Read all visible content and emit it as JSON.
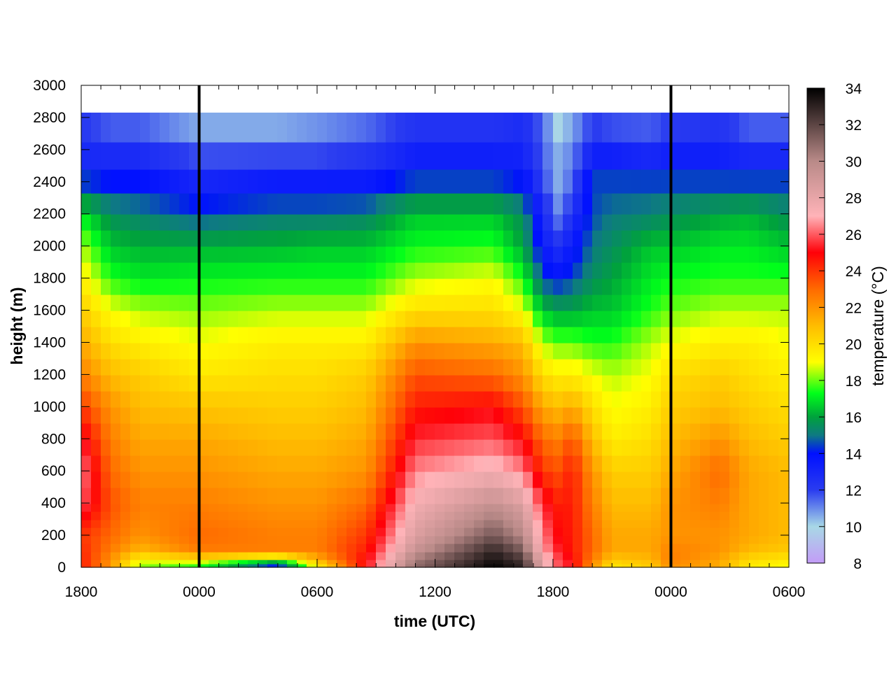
{
  "chart_data": {
    "type": "heatmap",
    "title": "",
    "xlabel": "time (UTC)",
    "ylabel": "height (m)",
    "colorbar_label": "temperature (°C)",
    "x_ticks": [
      "1800",
      "0000",
      "0600",
      "1200",
      "1800",
      "0000",
      "0600"
    ],
    "x_tick_hours": [
      0,
      6,
      12,
      18,
      24,
      30,
      36
    ],
    "xlim_hours": [
      0,
      36
    ],
    "y_ticks": [
      0,
      200,
      400,
      600,
      800,
      1000,
      1200,
      1400,
      1600,
      1800,
      2000,
      2200,
      2400,
      2600,
      2800,
      3000
    ],
    "ylim": [
      0,
      3000
    ],
    "colorbar_ticks": [
      8,
      10,
      12,
      14,
      16,
      18,
      20,
      22,
      24,
      26,
      28,
      30,
      32,
      34
    ],
    "colorbar_range": [
      8,
      34
    ],
    "data_top_height": 2830,
    "day_boundaries_hours": [
      6,
      30
    ],
    "grid": false,
    "colorscale": [
      {
        "value": 8,
        "color": "#c39cf7"
      },
      {
        "value": 10,
        "color": "#a8d8e6"
      },
      {
        "value": 12,
        "color": "#2a3cf0"
      },
      {
        "value": 14,
        "color": "#0010ff"
      },
      {
        "value": 15,
        "color": "#0e7a82"
      },
      {
        "value": 16,
        "color": "#00a23c"
      },
      {
        "value": 17.3,
        "color": "#00ff1a"
      },
      {
        "value": 19,
        "color": "#ffff00"
      },
      {
        "value": 21,
        "color": "#ffbc00"
      },
      {
        "value": 23,
        "color": "#ff6a00"
      },
      {
        "value": 25,
        "color": "#ff0008"
      },
      {
        "value": 27,
        "color": "#ffb3b8"
      },
      {
        "value": 30,
        "color": "#b98a88"
      },
      {
        "value": 34,
        "color": "#000000"
      }
    ],
    "profile_heights": [
      0,
      50,
      100,
      200,
      400,
      600,
      800,
      1000,
      1200,
      1400,
      1600,
      1800,
      2000,
      2200,
      2400,
      2600,
      2830
    ],
    "keyframes": [
      {
        "time_hours": 0,
        "temps": [
          24.5,
          24.5,
          24.3,
          24,
          26,
          26.5,
          25.5,
          24,
          22.5,
          21.5,
          20.5,
          19.5,
          18.5,
          17,
          14.5,
          12.5,
          12
        ]
      },
      {
        "time_hours": 1.5,
        "temps": [
          22,
          22,
          22.5,
          23,
          23.5,
          23,
          22.5,
          22,
          21,
          20,
          19,
          17.5,
          16.5,
          15.5,
          14,
          12.5,
          11
        ]
      },
      {
        "time_hours": 3,
        "temps": [
          18,
          19,
          21,
          22,
          22.5,
          22,
          21.5,
          21,
          20.5,
          19.5,
          18.5,
          17,
          16.2,
          15.2,
          14,
          12.5,
          11
        ]
      },
      {
        "time_hours": 6,
        "temps": [
          17,
          19.5,
          22.5,
          23,
          22.5,
          22,
          21.5,
          20.8,
          19.7,
          19,
          18.2,
          17.2,
          16.2,
          14.5,
          13,
          11.5,
          10
        ]
      },
      {
        "time_hours": 10,
        "temps": [
          13,
          17,
          22.5,
          22.5,
          22,
          21.5,
          21,
          20.5,
          20,
          19.5,
          18.5,
          17.3,
          16.3,
          15,
          13.5,
          11.5,
          10
        ]
      },
      {
        "time_hours": 12,
        "temps": [
          19,
          21,
          22.5,
          22.5,
          22,
          21.5,
          21,
          20.5,
          20,
          19.5,
          18.5,
          17.3,
          16.5,
          15,
          13.5,
          11.5,
          10.5
        ]
      },
      {
        "time_hours": 14.5,
        "temps": [
          25,
          25,
          24.5,
          24,
          23,
          22,
          21.5,
          21,
          20.5,
          19.5,
          18.5,
          17.3,
          16.5,
          15.2,
          13.5,
          12,
          11
        ]
      },
      {
        "time_hours": 17,
        "temps": [
          31,
          30.5,
          29.5,
          28.5,
          27.5,
          26.5,
          25.5,
          24.5,
          23.5,
          22,
          20,
          18.5,
          17.3,
          16.5,
          14.5,
          13,
          12
        ]
      },
      {
        "time_hours": 21,
        "temps": [
          34,
          33.5,
          33,
          31.5,
          29.5,
          27.5,
          26,
          25,
          23,
          21.5,
          20,
          19,
          17.5,
          16.5,
          14.5,
          13,
          12
        ]
      },
      {
        "time_hours": 22.5,
        "temps": [
          33,
          32.5,
          31.5,
          30,
          28.5,
          26.5,
          25,
          23.5,
          22,
          21,
          19,
          17.5,
          16,
          15.5,
          14,
          13,
          12.5
        ]
      },
      {
        "time_hours": 23.5,
        "temps": [
          28,
          28,
          27,
          26.5,
          25.5,
          24,
          23,
          21.5,
          20,
          18.5,
          16.5,
          14.5,
          13.5,
          13,
          12,
          11.5,
          11.5
        ]
      },
      {
        "time_hours": 24.2,
        "temps": [
          26,
          26,
          25.5,
          25,
          24.5,
          23.5,
          22.5,
          21,
          19.5,
          18,
          16,
          14,
          12.5,
          11,
          10.5,
          10.5,
          9.5
        ]
      },
      {
        "time_hours": 25,
        "temps": [
          25,
          25,
          24.5,
          24.5,
          24.5,
          24.5,
          23.5,
          21.5,
          19.5,
          18,
          16,
          14.5,
          13.5,
          12.5,
          11.5,
          11,
          10.5
        ]
      },
      {
        "time_hours": 26,
        "temps": [
          22,
          22.5,
          23,
          23,
          22.5,
          22,
          21,
          20,
          19,
          17.5,
          16.5,
          15.5,
          15,
          14.5,
          14.5,
          13,
          11.5
        ]
      },
      {
        "time_hours": 27,
        "temps": [
          19.5,
          20.5,
          21.5,
          21.5,
          21,
          20.5,
          19.5,
          19,
          18.5,
          17.5,
          16.5,
          16,
          15.5,
          15,
          14.5,
          13,
          11
        ]
      },
      {
        "time_hours": 29,
        "temps": [
          20.5,
          21,
          21.5,
          21.5,
          21,
          20.5,
          20,
          19.5,
          19,
          18.5,
          17.5,
          17,
          16.5,
          15.2,
          14.5,
          12.5,
          11
        ]
      },
      {
        "time_hours": 30,
        "temps": [
          22,
          22.5,
          22.5,
          22,
          22,
          21.5,
          21,
          20.5,
          20,
          19,
          18,
          17.3,
          16.5,
          15.5,
          14.5,
          13,
          11.5
        ]
      },
      {
        "time_hours": 32.5,
        "temps": [
          21.5,
          21.5,
          22,
          22,
          22.5,
          23,
          22,
          21,
          20.5,
          19.5,
          18.5,
          17.5,
          17,
          16,
          14.5,
          13,
          12
        ]
      },
      {
        "time_hours": 34,
        "temps": [
          19.5,
          20,
          21,
          21.5,
          21.5,
          21.5,
          21,
          20.5,
          20,
          19.5,
          18.5,
          17.5,
          17,
          16.2,
          14.5,
          12.5,
          11
        ]
      },
      {
        "time_hours": 36,
        "temps": [
          19,
          19.5,
          20.5,
          21,
          21,
          21,
          20.5,
          20,
          19.5,
          19,
          18.5,
          17.5,
          16.5,
          15.5,
          14.5,
          12.5,
          11
        ]
      }
    ]
  }
}
